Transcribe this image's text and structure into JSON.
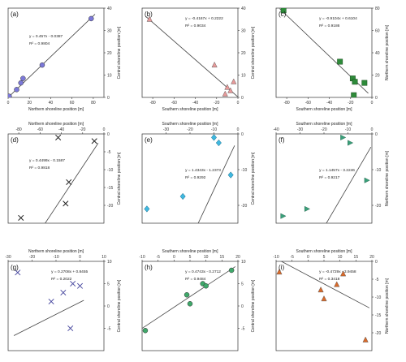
{
  "chart_data": [
    {
      "panel": "(a)",
      "type": "scatter",
      "xlabel": "Northern shoreline position [m]",
      "ylabel": "Central shoreline position [m]",
      "xlim": [
        0,
        90
      ],
      "ylim": [
        0,
        40
      ],
      "xticks": [
        0,
        20,
        40,
        60,
        80
      ],
      "yticks": [
        0,
        10,
        20,
        30,
        40
      ],
      "x_axis": "bottom",
      "y_axis": "right",
      "equation": "y = 0.457x - 0.0387",
      "r2": "R² = 0.9804",
      "fit": {
        "slope": 0.457,
        "intercept": -0.0387
      },
      "marker": "circle",
      "color": "#7b78d8",
      "points": [
        [
          1,
          0.5
        ],
        [
          8,
          3.5
        ],
        [
          12,
          6.5
        ],
        [
          14,
          8.5
        ],
        [
          32,
          14.5
        ],
        [
          78,
          35.3
        ]
      ]
    },
    {
      "panel": "(b)",
      "type": "scatter",
      "xlabel": "Southern shoreline position [m]",
      "ylabel": "Central shoreline position [m]",
      "xlim": [
        -90,
        0
      ],
      "ylim": [
        0,
        40
      ],
      "xticks": [
        -80,
        -60,
        -40,
        -20,
        0
      ],
      "yticks": [
        0,
        10,
        20,
        30,
        40
      ],
      "x_axis": "bottom",
      "y_axis": "right",
      "equation": "y = -0.4167x + 0.2222",
      "r2": "R² = 0.9034",
      "fit": {
        "slope": -0.4167,
        "intercept": 0.2222
      },
      "marker": "triangle",
      "color": "#e89a9a",
      "points": [
        [
          -83,
          35
        ],
        [
          -22,
          14.5
        ],
        [
          -10,
          4.5
        ],
        [
          -12,
          1.5
        ],
        [
          -4,
          7
        ],
        [
          -7,
          3
        ]
      ]
    },
    {
      "panel": "(c)",
      "type": "scatter",
      "xlabel": "Southern shoreline position [m]",
      "ylabel": "Northern shoreline position [m]",
      "xlim": [
        -90,
        0
      ],
      "ylim": [
        0,
        80
      ],
      "xticks": [
        -80,
        -60,
        -40,
        -20,
        0
      ],
      "yticks": [
        0,
        20,
        40,
        60,
        80
      ],
      "x_axis": "bottom",
      "y_axis": "right",
      "equation": "y = -0.9104x + 0.6104",
      "r2": "R² = 0.9186",
      "fit": {
        "slope": -0.9104,
        "intercept": 0.6104
      },
      "marker": "square",
      "color": "#2e8b3a",
      "points": [
        [
          -83,
          78
        ],
        [
          -30,
          32
        ],
        [
          -18,
          17
        ],
        [
          -16,
          14
        ],
        [
          -7,
          13
        ],
        [
          -17,
          2
        ]
      ]
    },
    {
      "panel": "(d)",
      "type": "scatter",
      "xlabel": "Northern shoreline position [m]",
      "ylabel": "Central shoreline position [m]",
      "xlim": [
        -90,
        0
      ],
      "ylim": [
        -25,
        0
      ],
      "xticks": [
        -80,
        -60,
        -40,
        -20,
        0
      ],
      "yticks": [
        -20,
        -15,
        -10,
        -5,
        0
      ],
      "x_axis": "top",
      "y_axis": "right",
      "equation": "y = 0.4499x - 0.1587",
      "r2": "R² = 0.9818",
      "fit": {
        "slope": 0.4499,
        "intercept": -0.1587
      },
      "marker": "x",
      "color": "#222222",
      "points": [
        [
          -78,
          -23.5
        ],
        [
          -36,
          -19.5
        ],
        [
          -33,
          -13.5
        ],
        [
          -43,
          -1
        ],
        [
          -9,
          -2
        ]
      ]
    },
    {
      "panel": "(e)",
      "type": "scatter",
      "xlabel": "Southern shoreline position [m]",
      "ylabel": "Central shoreline position [m]",
      "xlim": [
        -40,
        0
      ],
      "ylim": [
        -25,
        0
      ],
      "xticks": [
        -30,
        -20,
        -10,
        0
      ],
      "yticks": [
        -20,
        -10,
        0
      ],
      "x_axis": "top",
      "y_axis": "right",
      "equation": "y = 1.4343x - 1.2373",
      "r2": "R² = 0.9292",
      "fit": {
        "slope": 1.4343,
        "intercept": -1.2373
      },
      "marker": "diamond",
      "color": "#3fb8e0",
      "points": [
        [
          -38,
          -21
        ],
        [
          -23,
          -17.5
        ],
        [
          -10,
          -1
        ],
        [
          -8,
          -2.5
        ],
        [
          -3,
          -11.5
        ]
      ]
    },
    {
      "panel": "(f)",
      "type": "scatter",
      "xlabel": "Southern shoreline position [m]",
      "ylabel": "Northern shoreline position [m]",
      "xlim": [
        -40,
        0
      ],
      "ylim": [
        -25,
        0
      ],
      "xticks": [
        -40,
        -30,
        -20,
        -10,
        0
      ],
      "yticks": [
        -20,
        -10,
        0
      ],
      "x_axis": "top",
      "y_axis": "right",
      "equation": "y = 1.1457x - 3.2246",
      "r2": "R² = 0.9217",
      "fit": {
        "slope": 1.1457,
        "intercept": -3.2246
      },
      "marker": "triangle-right",
      "color": "#3aa07a",
      "points": [
        [
          -37,
          -23
        ],
        [
          -27,
          -21
        ],
        [
          -12,
          -1
        ],
        [
          -9,
          -2.5
        ],
        [
          -2,
          -13
        ]
      ]
    },
    {
      "panel": "(g)",
      "type": "scatter",
      "xlabel": "Northern shoreline position [m]",
      "ylabel": "Central shoreline position [m]",
      "xlim": [
        -30,
        10
      ],
      "ylim": [
        -10,
        10
      ],
      "xticks": [
        -30,
        -20,
        -10,
        0,
        10
      ],
      "yticks": [
        -5,
        0,
        5,
        10
      ],
      "x_axis": "top",
      "y_axis": "right",
      "equation": "y = 0.2708x + 0.8455",
      "r2": "R² = 0.2022",
      "fit": {
        "slope": 0.2708,
        "intercept": 0.8455
      },
      "marker": "x",
      "color": "#4a4aa0",
      "points": [
        [
          -26,
          7.5
        ],
        [
          -12,
          1
        ],
        [
          -7,
          3
        ],
        [
          -3,
          5
        ],
        [
          0,
          4.5
        ],
        [
          -4,
          -5
        ]
      ]
    },
    {
      "panel": "(h)",
      "type": "scatter",
      "xlabel": "Southern shoreline position [m]",
      "ylabel": "Central shoreline position [m]",
      "xlim": [
        -10,
        20
      ],
      "ylim": [
        -10,
        10
      ],
      "xticks": [
        -10,
        -5,
        0,
        5,
        10,
        15,
        20
      ],
      "yticks": [
        -5,
        0,
        5,
        10
      ],
      "x_axis": "top",
      "y_axis": "right",
      "equation": "y = 0.4743x - 0.2712",
      "r2": "R² = 0.9484",
      "fit": {
        "slope": 0.4743,
        "intercept": -0.2712
      },
      "marker": "circle",
      "color": "#3fa86a",
      "points": [
        [
          -9,
          -5.5
        ],
        [
          4,
          2.5
        ],
        [
          5,
          0.5
        ],
        [
          9,
          5
        ],
        [
          10,
          4.5
        ],
        [
          18,
          8
        ]
      ]
    },
    {
      "panel": "(i)",
      "type": "scatter",
      "xlabel": "Southern shoreline position [m]",
      "ylabel": "Northern shoreline position [m]",
      "xlim": [
        -10,
        20
      ],
      "ylim": [
        -25,
        0
      ],
      "xticks": [
        -10,
        -5,
        0,
        5,
        10,
        15,
        20
      ],
      "yticks": [
        -20,
        -15,
        -10,
        -5,
        0
      ],
      "x_axis": "top",
      "y_axis": "right",
      "equation": "y = -0.4729x - 3.9458",
      "r2": "R² = 0.3418",
      "fit": {
        "slope": -0.4729,
        "intercept": -3.9458
      },
      "marker": "triangle",
      "color": "#d96a2a",
      "points": [
        [
          -9,
          -3
        ],
        [
          4,
          -8
        ],
        [
          5,
          -10.5
        ],
        [
          9,
          -6.5
        ],
        [
          11,
          -3.5
        ],
        [
          18,
          -22
        ]
      ]
    }
  ]
}
